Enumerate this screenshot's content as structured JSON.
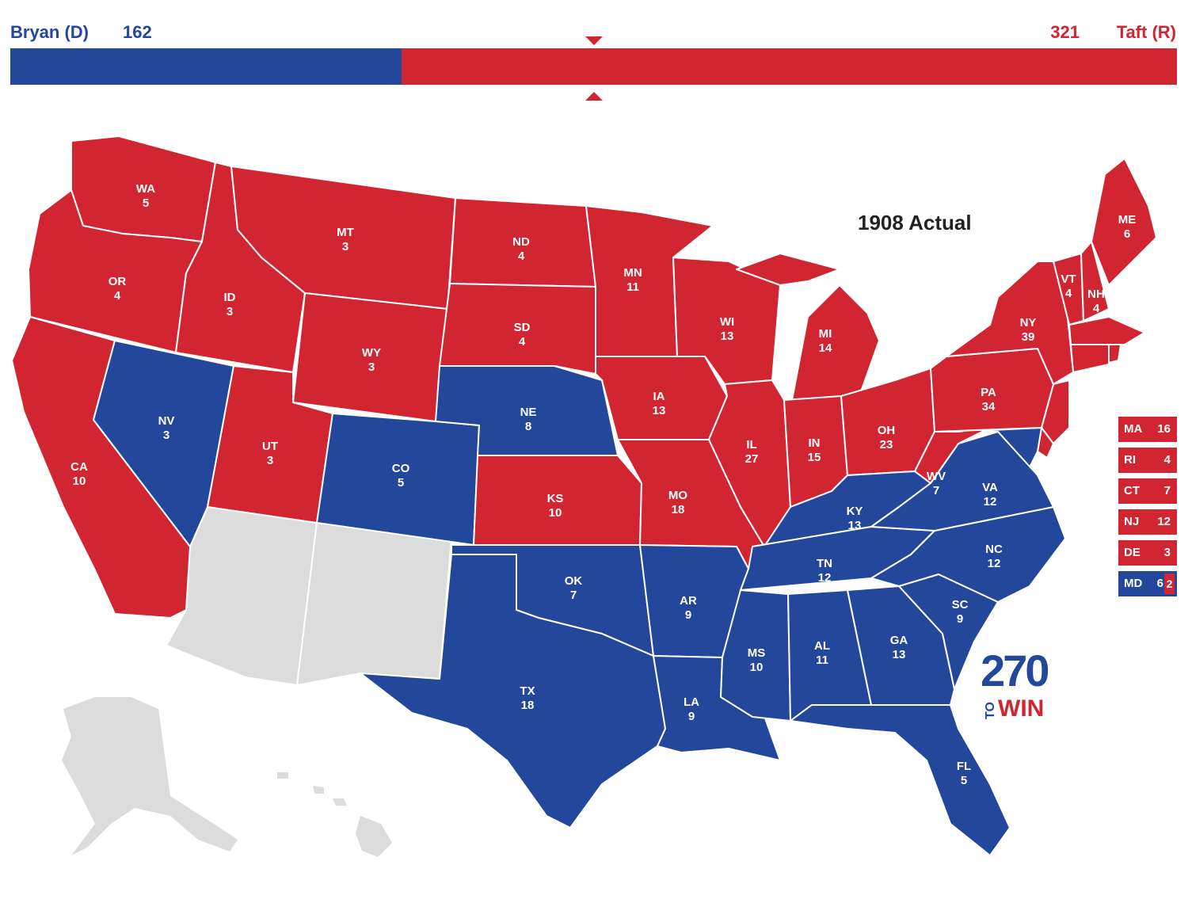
{
  "header": {
    "dem_name": "Bryan (D)",
    "dem_votes": "162",
    "rep_votes": "321",
    "rep_name": "Taft (R)"
  },
  "bar": {
    "dem_votes": 162,
    "rep_votes": 321,
    "total": 483
  },
  "map_title": "1908 Actual",
  "colors": {
    "dem": "#23479a",
    "rep": "#d22532",
    "none": "#dcdcdc"
  },
  "states": [
    {
      "abbr": "WA",
      "ev": "5",
      "party": "rep"
    },
    {
      "abbr": "OR",
      "ev": "4",
      "party": "rep"
    },
    {
      "abbr": "CA",
      "ev": "10",
      "party": "rep"
    },
    {
      "abbr": "ID",
      "ev": "3",
      "party": "rep"
    },
    {
      "abbr": "NV",
      "ev": "3",
      "party": "dem"
    },
    {
      "abbr": "MT",
      "ev": "3",
      "party": "rep"
    },
    {
      "abbr": "WY",
      "ev": "3",
      "party": "rep"
    },
    {
      "abbr": "UT",
      "ev": "3",
      "party": "rep"
    },
    {
      "abbr": "CO",
      "ev": "5",
      "party": "dem"
    },
    {
      "abbr": "ND",
      "ev": "4",
      "party": "rep"
    },
    {
      "abbr": "SD",
      "ev": "4",
      "party": "rep"
    },
    {
      "abbr": "NE",
      "ev": "8",
      "party": "dem"
    },
    {
      "abbr": "KS",
      "ev": "10",
      "party": "rep"
    },
    {
      "abbr": "OK",
      "ev": "7",
      "party": "dem"
    },
    {
      "abbr": "TX",
      "ev": "18",
      "party": "dem"
    },
    {
      "abbr": "MN",
      "ev": "11",
      "party": "rep"
    },
    {
      "abbr": "IA",
      "ev": "13",
      "party": "rep"
    },
    {
      "abbr": "MO",
      "ev": "18",
      "party": "rep"
    },
    {
      "abbr": "AR",
      "ev": "9",
      "party": "dem"
    },
    {
      "abbr": "LA",
      "ev": "9",
      "party": "dem"
    },
    {
      "abbr": "WI",
      "ev": "13",
      "party": "rep"
    },
    {
      "abbr": "IL",
      "ev": "27",
      "party": "rep"
    },
    {
      "abbr": "MI",
      "ev": "14",
      "party": "rep"
    },
    {
      "abbr": "IN",
      "ev": "15",
      "party": "rep"
    },
    {
      "abbr": "OH",
      "ev": "23",
      "party": "rep"
    },
    {
      "abbr": "KY",
      "ev": "13",
      "party": "dem"
    },
    {
      "abbr": "TN",
      "ev": "12",
      "party": "dem"
    },
    {
      "abbr": "MS",
      "ev": "10",
      "party": "dem"
    },
    {
      "abbr": "AL",
      "ev": "11",
      "party": "dem"
    },
    {
      "abbr": "GA",
      "ev": "13",
      "party": "dem"
    },
    {
      "abbr": "FL",
      "ev": "5",
      "party": "dem"
    },
    {
      "abbr": "SC",
      "ev": "9",
      "party": "dem"
    },
    {
      "abbr": "NC",
      "ev": "12",
      "party": "dem"
    },
    {
      "abbr": "VA",
      "ev": "12",
      "party": "dem"
    },
    {
      "abbr": "WV",
      "ev": "7",
      "party": "rep"
    },
    {
      "abbr": "PA",
      "ev": "34",
      "party": "rep"
    },
    {
      "abbr": "NY",
      "ev": "39",
      "party": "rep"
    },
    {
      "abbr": "VT",
      "ev": "4",
      "party": "rep"
    },
    {
      "abbr": "NH",
      "ev": "4",
      "party": "rep"
    },
    {
      "abbr": "ME",
      "ev": "6",
      "party": "rep"
    }
  ],
  "small_states": [
    {
      "abbr": "MA",
      "ev": "16",
      "party": "rep"
    },
    {
      "abbr": "RI",
      "ev": "4",
      "party": "rep"
    },
    {
      "abbr": "CT",
      "ev": "7",
      "party": "rep"
    },
    {
      "abbr": "NJ",
      "ev": "12",
      "party": "rep"
    },
    {
      "abbr": "DE",
      "ev": "3",
      "party": "rep"
    }
  ],
  "md": {
    "abbr": "MD",
    "ev_dem": "6",
    "ev_rep": "2"
  },
  "logo": {
    "number": "270",
    "to": "TO",
    "win": "WIN"
  }
}
